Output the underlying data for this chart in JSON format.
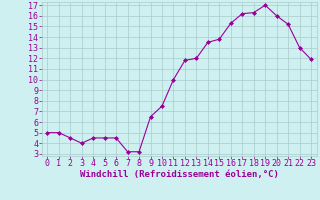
{
  "x": [
    0,
    1,
    2,
    3,
    4,
    5,
    6,
    7,
    8,
    9,
    10,
    11,
    12,
    13,
    14,
    15,
    16,
    17,
    18,
    19,
    20,
    21,
    22,
    23
  ],
  "y": [
    5.0,
    5.0,
    4.5,
    4.0,
    4.5,
    4.5,
    4.5,
    3.2,
    3.2,
    6.5,
    7.5,
    10.0,
    11.8,
    12.0,
    13.5,
    13.8,
    15.3,
    16.2,
    16.3,
    17.0,
    16.0,
    15.2,
    13.0,
    11.9
  ],
  "line_color": "#990099",
  "marker": "D",
  "marker_size": 2.0,
  "bg_color": "#cff0f0",
  "grid_color": "#aacccc",
  "xlabel": "Windchill (Refroidissement éolien,°C)",
  "tick_color": "#990099",
  "ylim": [
    3,
    17
  ],
  "xlim": [
    0,
    23
  ],
  "yticks": [
    3,
    4,
    5,
    6,
    7,
    8,
    9,
    10,
    11,
    12,
    13,
    14,
    15,
    16,
    17
  ],
  "xticks": [
    0,
    1,
    2,
    3,
    4,
    5,
    6,
    7,
    8,
    9,
    10,
    11,
    12,
    13,
    14,
    15,
    16,
    17,
    18,
    19,
    20,
    21,
    22,
    23
  ],
  "tick_fontsize": 6.0,
  "label_fontsize": 6.5
}
